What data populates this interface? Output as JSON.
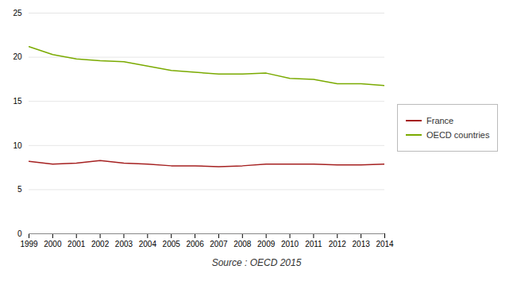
{
  "chart_data": {
    "type": "line",
    "x": [
      1999,
      2000,
      2001,
      2002,
      2003,
      2004,
      2005,
      2006,
      2007,
      2008,
      2009,
      2010,
      2011,
      2012,
      2013,
      2014
    ],
    "series": [
      {
        "name": "France",
        "color": "#a52020",
        "values": [
          8.2,
          7.9,
          8.0,
          8.3,
          8.0,
          7.9,
          7.7,
          7.7,
          7.6,
          7.7,
          7.9,
          7.9,
          7.9,
          7.8,
          7.8,
          7.9
        ]
      },
      {
        "name": "OECD countries",
        "color": "#7aaa00",
        "values": [
          21.2,
          20.3,
          19.8,
          19.6,
          19.5,
          19.0,
          18.5,
          18.3,
          18.1,
          18.1,
          18.2,
          17.6,
          17.5,
          17.0,
          17.0,
          16.8
        ]
      }
    ],
    "xlim": [
      1999,
      2014
    ],
    "xticks": [
      1999,
      2000,
      2001,
      2002,
      2003,
      2004,
      2005,
      2006,
      2007,
      2008,
      2009,
      2010,
      2011,
      2012,
      2013,
      2014
    ],
    "ylim": [
      0,
      25
    ],
    "yticks": [
      0,
      5,
      10,
      15,
      20,
      25
    ],
    "grid": true,
    "legend": "right",
    "annotations": [
      "Source : OECD 2015"
    ]
  }
}
